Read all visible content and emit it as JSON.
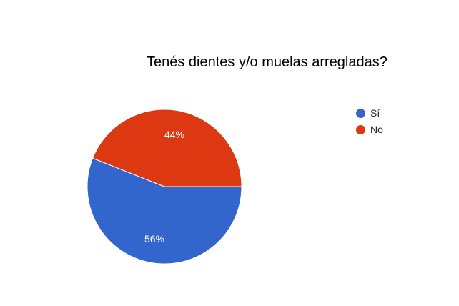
{
  "chart_data": {
    "type": "pie",
    "title": "Tenés dientes y/o muelas arregladas?",
    "slices": [
      {
        "label": "Sí",
        "value": 56,
        "display": "56%",
        "color": "#3366cc"
      },
      {
        "label": "No",
        "value": 44,
        "display": "44%",
        "color": "#dc3912"
      }
    ],
    "legend_position": "right"
  }
}
